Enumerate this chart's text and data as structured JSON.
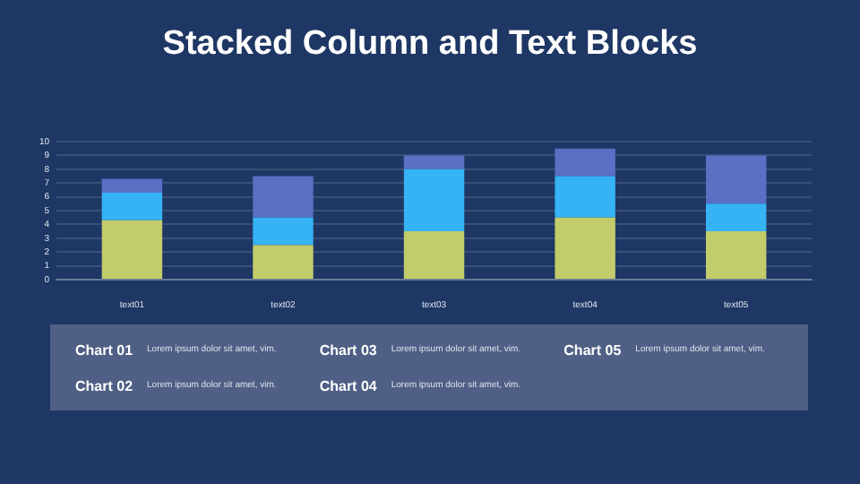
{
  "chart_data": {
    "type": "bar",
    "title": "Stacked Column and Text Blocks",
    "stacked": true,
    "categories": [
      "text01",
      "text02",
      "text03",
      "text04",
      "text05"
    ],
    "series": [
      {
        "color": "#c3cc6a",
        "values": [
          4.3,
          2.5,
          3.5,
          4.5,
          3.5
        ]
      },
      {
        "color": "#35b3f5",
        "values": [
          2,
          2,
          4.5,
          3,
          2
        ]
      },
      {
        "color": "#5b6fc4",
        "values": [
          1,
          3,
          1,
          2,
          3.5
        ]
      }
    ],
    "ylim": [
      0,
      10
    ],
    "yticks": [
      0,
      1,
      2,
      3,
      4,
      5,
      6,
      7,
      8,
      9,
      10
    ],
    "grid": "y",
    "legend": false,
    "annotations": [
      "Chart 01",
      "Lorem ipsum dolor sit amet, vim.",
      "Chart 02",
      "Lorem ipsum dolor sit amet, vim.",
      "Chart 03",
      "Lorem ipsum dolor sit amet, vim.",
      "Chart 04",
      "Lorem ipsum dolor sit amet, vim.",
      "Chart 05",
      "Lorem ipsum dolor sit amet, vim."
    ]
  }
}
